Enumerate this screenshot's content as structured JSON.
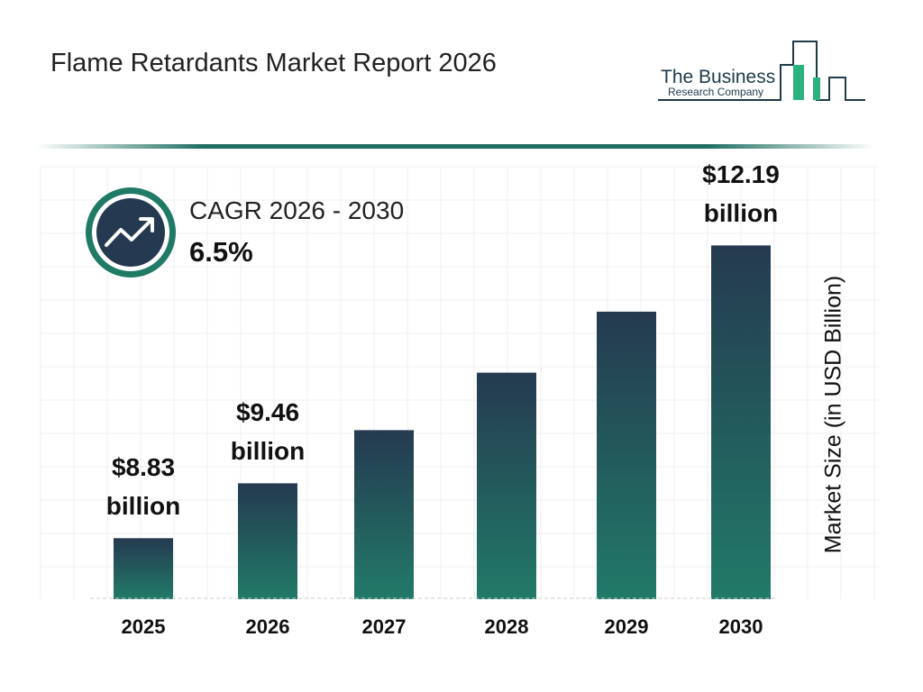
{
  "title": "Flame Retardants Market Report 2026",
  "logo": {
    "line1": "The Business",
    "line2": "Research Company"
  },
  "cagr": {
    "label": "CAGR 2026 - 2030",
    "value": "6.5%",
    "icon": "trend-up-arrow-icon"
  },
  "colors": {
    "bar_top": "#253a50",
    "bar_bottom": "#217a68",
    "accent": "#1f6e62"
  },
  "chart_data": {
    "type": "bar",
    "categories": [
      "2025",
      "2026",
      "2027",
      "2028",
      "2029",
      "2030"
    ],
    "values": [
      8.83,
      9.46,
      10.07,
      10.73,
      11.43,
      12.19
    ],
    "data_labels": [
      {
        "index": 0,
        "amount": "$8.83",
        "unit": "billion"
      },
      {
        "index": 1,
        "amount": "$9.46",
        "unit": "billion"
      },
      {
        "index": 5,
        "amount": "$12.19",
        "unit": "billion"
      }
    ],
    "ylabel": "Market Size (in USD Billion)",
    "xlabel": "",
    "grid": true
  }
}
